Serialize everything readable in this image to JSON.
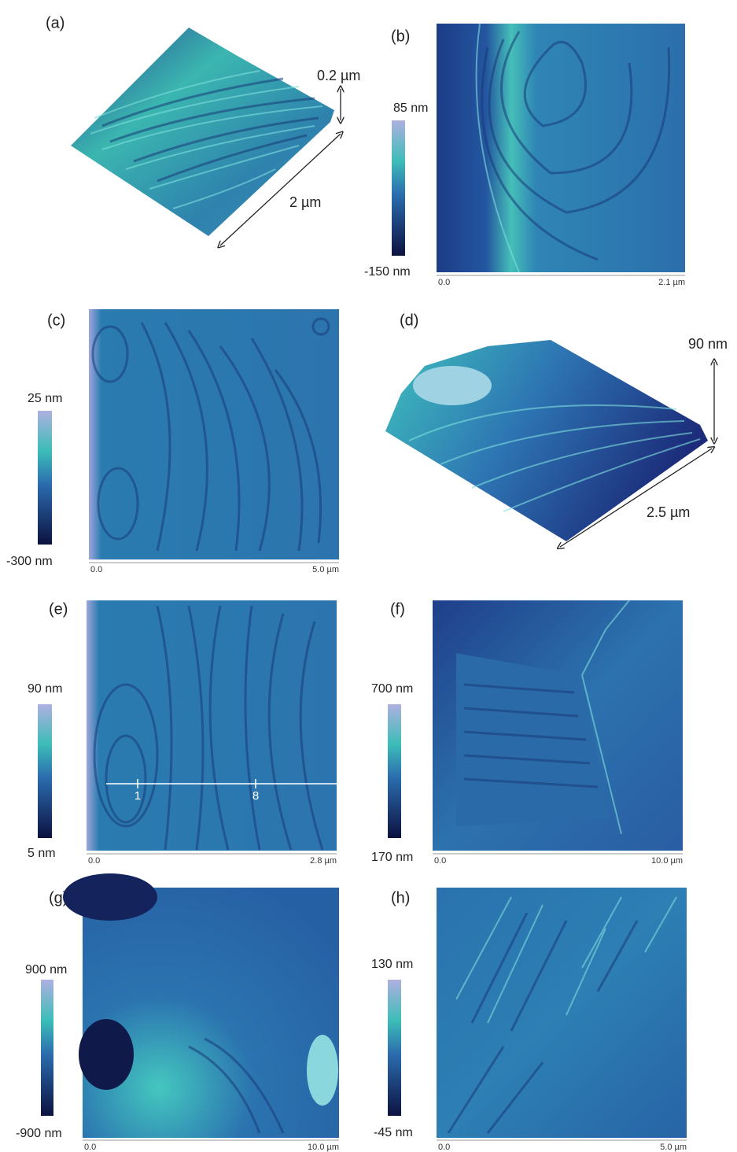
{
  "panels": [
    {
      "label": "(a)",
      "height": "0.2 µm",
      "length": "2 µm"
    },
    {
      "label": "(b)",
      "colorbar_max": "85 nm",
      "colorbar_min": "-150 nm",
      "axis_start": "0.0",
      "axis_end": "2.1 µm"
    },
    {
      "label": "(c)",
      "colorbar_max": "25 nm",
      "colorbar_min": "-300 nm",
      "axis_start": "0.0",
      "axis_end": "5.0 µm"
    },
    {
      "label": "(d)",
      "height": "90 nm",
      "length": "2.5 µm"
    },
    {
      "label": "(e)",
      "colorbar_max": "90 nm",
      "colorbar_min": "5 nm",
      "axis_start": "0.0",
      "axis_end": "2.8 µm",
      "profile_markers": [
        "1",
        "8"
      ]
    },
    {
      "label": "(f)",
      "colorbar_max": "700 nm",
      "colorbar_min": "170 nm",
      "axis_start": "0.0",
      "axis_end": "10.0 µm"
    },
    {
      "label": "(g)",
      "colorbar_max": "900 nm",
      "colorbar_min": "-900 nm",
      "axis_start": "0.0",
      "axis_end": "10.0 µm"
    },
    {
      "label": "(h)",
      "colorbar_max": "130 nm",
      "colorbar_min": "-45 nm",
      "axis_start": "0.0",
      "axis_end": "5.0 µm"
    }
  ]
}
